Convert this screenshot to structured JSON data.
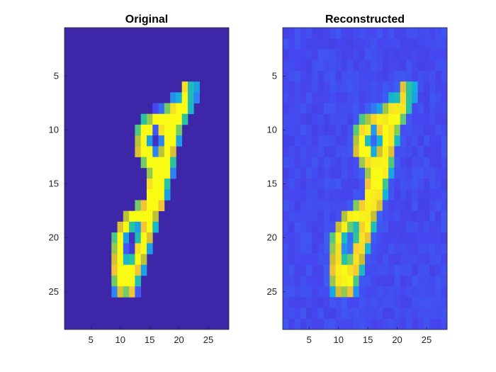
{
  "chart_data": [
    {
      "type": "heatmap",
      "title": "Original",
      "xlabel": "",
      "ylabel": "",
      "xlim": [
        0.5,
        28.5
      ],
      "ylim": [
        28.5,
        0.5
      ],
      "x_ticks": [
        5,
        10,
        15,
        20,
        25
      ],
      "y_ticks": [
        5,
        10,
        15,
        20,
        25
      ],
      "colormap": "parula",
      "background_color": "#3e26a8",
      "note_values": "pixel intensities 0..1 (0 = dark blue background, 1 = yellow)",
      "grid": false,
      "cells": [
        [
          6,
          21,
          0.95
        ],
        [
          6,
          22,
          0.55
        ],
        [
          6,
          23,
          0.4
        ],
        [
          7,
          19,
          0.35
        ],
        [
          7,
          20,
          0.45
        ],
        [
          7,
          21,
          1.0
        ],
        [
          7,
          22,
          0.55
        ],
        [
          7,
          23,
          0.3
        ],
        [
          8,
          16,
          0.15
        ],
        [
          8,
          17,
          0.25
        ],
        [
          8,
          18,
          0.7
        ],
        [
          8,
          19,
          0.95
        ],
        [
          8,
          20,
          1.0
        ],
        [
          8,
          21,
          1.0
        ],
        [
          8,
          22,
          0.5
        ],
        [
          9,
          14,
          0.6
        ],
        [
          9,
          15,
          0.75
        ],
        [
          9,
          16,
          1.0
        ],
        [
          9,
          17,
          1.0
        ],
        [
          9,
          18,
          1.0
        ],
        [
          9,
          19,
          1.0
        ],
        [
          9,
          20,
          1.0
        ],
        [
          9,
          21,
          0.6
        ],
        [
          10,
          13,
          0.65
        ],
        [
          10,
          14,
          1.0
        ],
        [
          10,
          15,
          1.0
        ],
        [
          10,
          16,
          0.2
        ],
        [
          10,
          17,
          0.95
        ],
        [
          10,
          18,
          1.0
        ],
        [
          10,
          19,
          1.0
        ],
        [
          10,
          20,
          0.7
        ],
        [
          11,
          13,
          0.8
        ],
        [
          11,
          14,
          1.0
        ],
        [
          11,
          15,
          0.4
        ],
        [
          11,
          16,
          0.05
        ],
        [
          11,
          17,
          0.3
        ],
        [
          11,
          18,
          1.0
        ],
        [
          11,
          19,
          1.0
        ],
        [
          11,
          20,
          0.4
        ],
        [
          12,
          13,
          0.85
        ],
        [
          12,
          14,
          1.0
        ],
        [
          12,
          15,
          1.0
        ],
        [
          12,
          16,
          0.3
        ],
        [
          12,
          17,
          0.8
        ],
        [
          12,
          18,
          1.0
        ],
        [
          12,
          19,
          0.85
        ],
        [
          13,
          14,
          0.7
        ],
        [
          13,
          15,
          1.0
        ],
        [
          13,
          16,
          1.0
        ],
        [
          13,
          17,
          1.0
        ],
        [
          13,
          18,
          1.0
        ],
        [
          13,
          19,
          0.6
        ],
        [
          14,
          15,
          0.75
        ],
        [
          14,
          16,
          1.0
        ],
        [
          14,
          17,
          1.0
        ],
        [
          14,
          18,
          1.0
        ],
        [
          14,
          19,
          0.3
        ],
        [
          15,
          15,
          0.95
        ],
        [
          15,
          16,
          1.0
        ],
        [
          15,
          17,
          1.0
        ],
        [
          15,
          18,
          0.6
        ],
        [
          16,
          15,
          1.0
        ],
        [
          16,
          16,
          1.0
        ],
        [
          16,
          17,
          1.0
        ],
        [
          16,
          18,
          0.4
        ],
        [
          17,
          13,
          0.7
        ],
        [
          17,
          14,
          0.9
        ],
        [
          17,
          15,
          1.0
        ],
        [
          17,
          16,
          1.0
        ],
        [
          17,
          17,
          0.9
        ],
        [
          18,
          11,
          0.8
        ],
        [
          18,
          12,
          1.0
        ],
        [
          18,
          13,
          1.0
        ],
        [
          18,
          14,
          1.0
        ],
        [
          18,
          15,
          1.0
        ],
        [
          18,
          16,
          0.8
        ],
        [
          19,
          10,
          0.85
        ],
        [
          19,
          11,
          1.0
        ],
        [
          19,
          12,
          0.6
        ],
        [
          19,
          13,
          0.4
        ],
        [
          19,
          14,
          0.9
        ],
        [
          19,
          15,
          1.0
        ],
        [
          19,
          16,
          0.5
        ],
        [
          20,
          9,
          0.65
        ],
        [
          20,
          10,
          1.0
        ],
        [
          20,
          11,
          0.4
        ],
        [
          20,
          12,
          0.05
        ],
        [
          20,
          13,
          0.55
        ],
        [
          20,
          14,
          1.0
        ],
        [
          20,
          15,
          0.85
        ],
        [
          21,
          9,
          0.75
        ],
        [
          21,
          10,
          1.0
        ],
        [
          21,
          11,
          0.2
        ],
        [
          21,
          12,
          0.1
        ],
        [
          21,
          13,
          0.95
        ],
        [
          21,
          14,
          1.0
        ],
        [
          21,
          15,
          0.4
        ],
        [
          22,
          9,
          0.85
        ],
        [
          22,
          10,
          1.0
        ],
        [
          22,
          11,
          0.5
        ],
        [
          22,
          12,
          0.6
        ],
        [
          22,
          13,
          1.0
        ],
        [
          22,
          14,
          0.8
        ],
        [
          23,
          9,
          0.9
        ],
        [
          23,
          10,
          1.0
        ],
        [
          23,
          11,
          1.0
        ],
        [
          23,
          12,
          1.0
        ],
        [
          23,
          13,
          0.9
        ],
        [
          23,
          14,
          0.4
        ],
        [
          24,
          9,
          0.7
        ],
        [
          24,
          10,
          1.0
        ],
        [
          24,
          11,
          1.0
        ],
        [
          24,
          12,
          1.0
        ],
        [
          24,
          13,
          0.55
        ],
        [
          25,
          9,
          0.3
        ],
        [
          25,
          10,
          0.85
        ],
        [
          25,
          11,
          0.7
        ],
        [
          25,
          12,
          0.9
        ],
        [
          25,
          13,
          0.2
        ]
      ]
    },
    {
      "type": "heatmap",
      "title": "Reconstructed",
      "xlabel": "",
      "ylabel": "",
      "xlim": [
        0.5,
        28.5
      ],
      "ylim": [
        28.5,
        0.5
      ],
      "x_ticks": [
        5,
        10,
        15,
        20,
        25
      ],
      "y_ticks": [
        5,
        10,
        15,
        20,
        25
      ],
      "colormap": "parula",
      "background_color": "#4a55f0",
      "note_values": "reconstruction of the Original image: same digit, slightly blurred, with faint noise around the stroke",
      "grid": false,
      "same_cells_as": "Original",
      "blur": 0.12
    }
  ]
}
